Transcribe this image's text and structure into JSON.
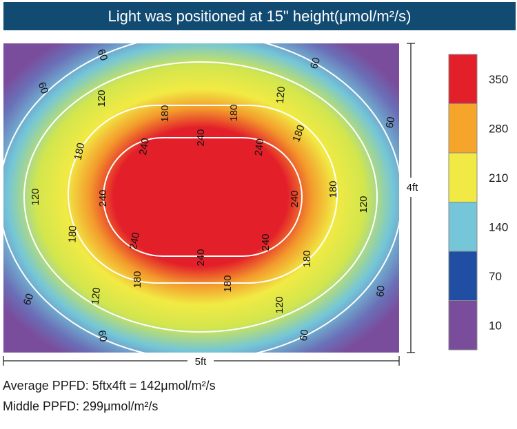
{
  "title": "Light was positioned at 15\" height(μmol/m²/s)",
  "chart_data": {
    "type": "heatmap",
    "title": "Light was positioned at 15\" height(μmol/m²/s)",
    "width_label": "5ft",
    "height_label": "4ft",
    "contour_levels": [
      60,
      120,
      180,
      240
    ],
    "legend": [
      {
        "label": "350",
        "color": "#e31f2a"
      },
      {
        "label": "280",
        "color": "#f5a52a"
      },
      {
        "label": "210",
        "color": "#f2ea44"
      },
      {
        "label": "140",
        "color": "#74c6d8"
      },
      {
        "label": "70",
        "color": "#1f4ea2"
      },
      {
        "label": "10",
        "color": "#7a4c9c"
      }
    ]
  },
  "stats": {
    "average": "Average PPFD: 5ftx4ft = 142μmol/m²/s",
    "middle": "Middle PPFD: 299μmol/m²/s"
  }
}
